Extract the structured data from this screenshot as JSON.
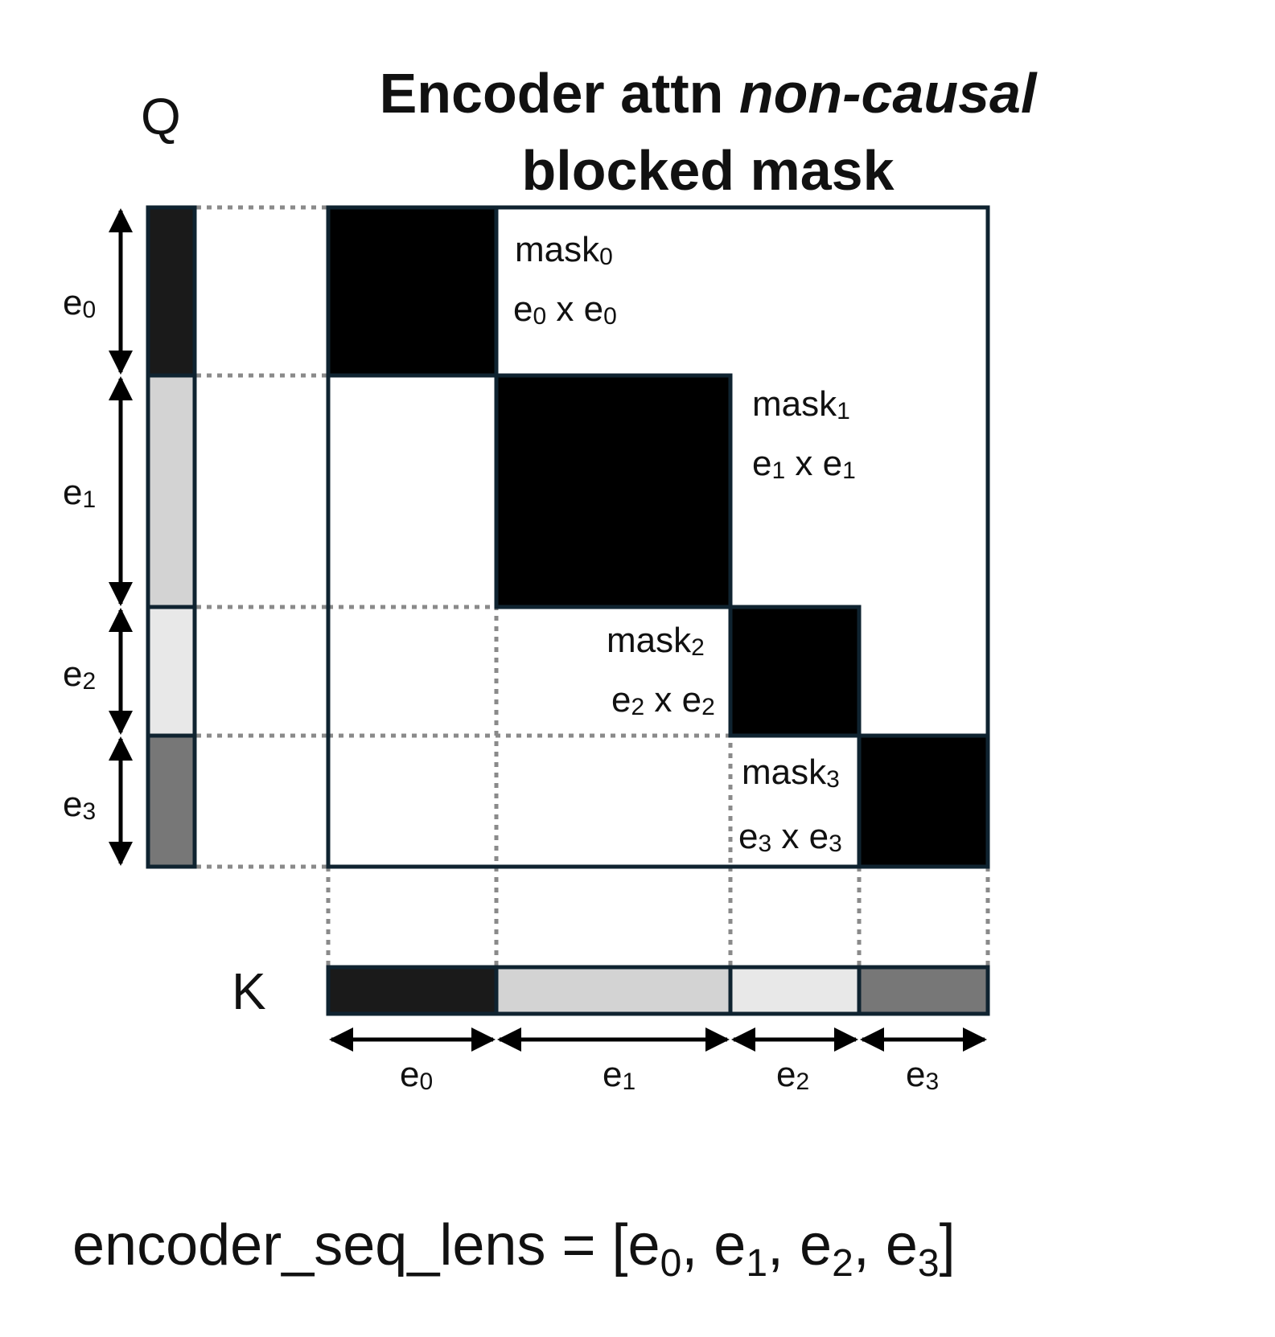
{
  "title": {
    "line1_prefix": "Encoder attn ",
    "line1_italic": "non-causal",
    "line2": "blocked mask"
  },
  "axis_labels": {
    "q": "Q",
    "k": "K"
  },
  "segments": [
    {
      "label": "e",
      "sub": "0",
      "color": "#1a1a1a",
      "mask": "mask",
      "mask_sub": "0"
    },
    {
      "label": "e",
      "sub": "1",
      "color": "#d3d3d3",
      "mask": "mask",
      "mask_sub": "1"
    },
    {
      "label": "e",
      "sub": "2",
      "color": "#e8e8e8",
      "mask": "mask",
      "mask_sub": "2"
    },
    {
      "label": "e",
      "sub": "3",
      "color": "#777777",
      "mask": "mask",
      "mask_sub": "3"
    }
  ],
  "dims_sep": "x",
  "formula": {
    "prefix": "encoder_seq_lens = [",
    "suffix": "]",
    "sep": ", "
  },
  "colors": {
    "mask_block": "#000000",
    "border": "#0f2330",
    "dotted": "#8a8a8a"
  }
}
